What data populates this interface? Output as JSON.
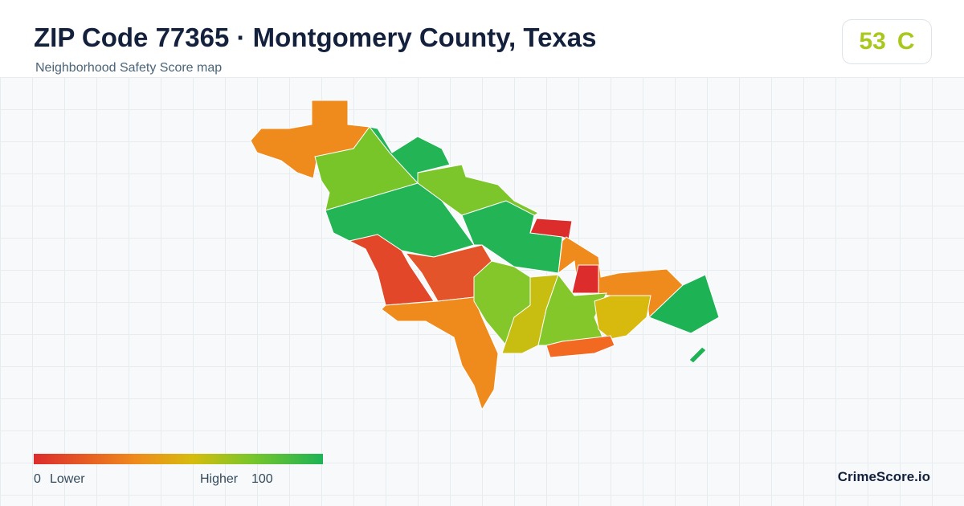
{
  "header": {
    "title": "ZIP Code 77365 · Montgomery County, Texas",
    "subtitle": "Neighborhood Safety Score map"
  },
  "score": {
    "value": 53,
    "grade": "C"
  },
  "legend": {
    "min": 0,
    "min_label": "Lower",
    "max_label": "Higher",
    "max": 100
  },
  "footer": {
    "brand": "CrimeScore.io"
  }
}
